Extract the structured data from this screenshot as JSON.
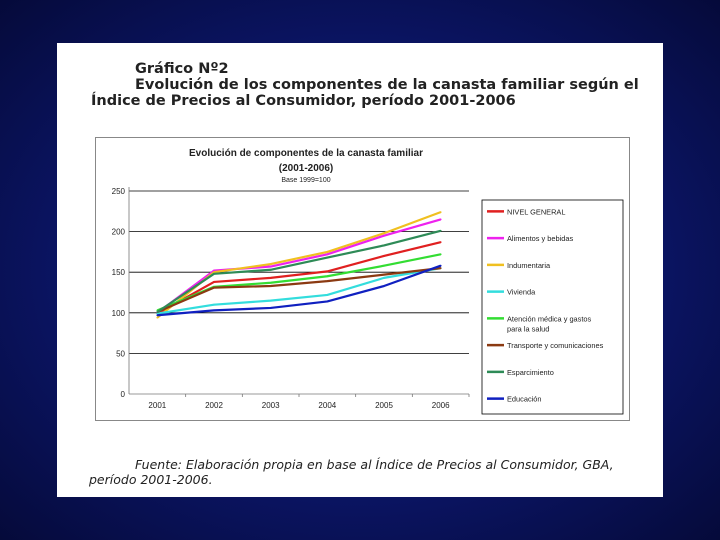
{
  "slide": {
    "heading_line1": "Gráfico Nº2",
    "heading_line2": "Evolución de los componentes de la canasta familiar según el",
    "heading_line3": "Índice de Precios al Consumidor, período 2001-2006",
    "source_line1": "Fuente: Elaboración propia en base al Índice de Precios al Consumidor, GBA,",
    "source_line2": "período 2001-2006."
  },
  "chart_data": {
    "type": "line",
    "title": "Evolución de componentes de la canasta familiar",
    "subtitle": "(2001-2006)",
    "note": "Base 1999=100",
    "x": [
      "2001",
      "2002",
      "2003",
      "2004",
      "2005",
      "2006"
    ],
    "ylim": [
      0,
      250
    ],
    "yticks": [
      "250",
      "200",
      "150",
      "100",
      "50",
      "0"
    ],
    "grid": true,
    "legend_position": "right",
    "series": [
      {
        "name": "NIVEL GENERAL",
        "color": "#e02020",
        "values": [
          99,
          138,
          143,
          151,
          170,
          187
        ]
      },
      {
        "name": "Alimentos y bebidas",
        "color": "#ee22ee",
        "values": [
          100,
          152,
          157,
          172,
          195,
          215
        ]
      },
      {
        "name": "Indumentaria",
        "color": "#f0c020",
        "values": [
          94,
          150,
          160,
          175,
          198,
          224
        ]
      },
      {
        "name": "Vivienda",
        "color": "#33dddd",
        "values": [
          99,
          110,
          115,
          122,
          143,
          155
        ]
      },
      {
        "name": "Atención médica y gastos para la salud",
        "color": "#33dd33",
        "values": [
          103,
          132,
          137,
          145,
          158,
          172
        ]
      },
      {
        "name": "Transporte y comunicaciones",
        "color": "#8b3a12",
        "values": [
          101,
          131,
          133,
          139,
          147,
          155
        ]
      },
      {
        "name": "Esparcimiento",
        "color": "#2e8b57",
        "values": [
          101,
          148,
          153,
          168,
          183,
          201
        ]
      },
      {
        "name": "Educación",
        "color": "#1020c0",
        "values": [
          97,
          103,
          106,
          114,
          133,
          158
        ]
      }
    ]
  }
}
